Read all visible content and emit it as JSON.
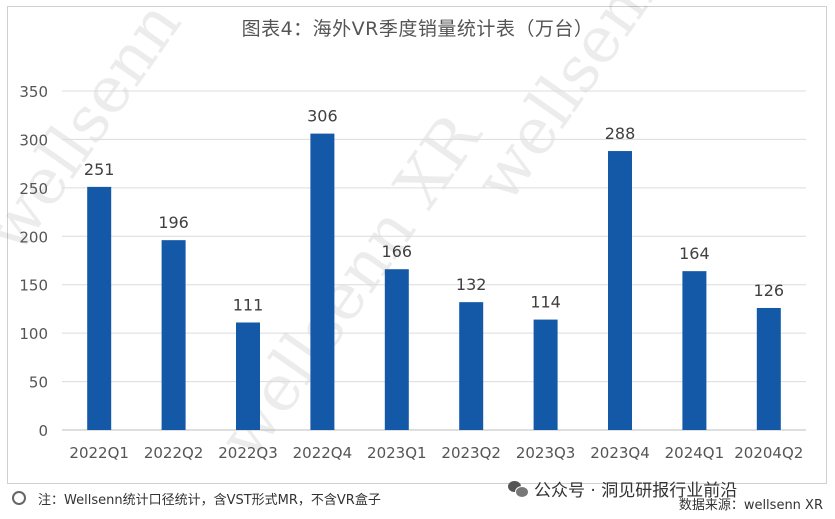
{
  "chart_data": {
    "type": "bar",
    "title": "图表4：海外VR季度销量统计表（万台）",
    "categories": [
      "2022Q1",
      "2022Q2",
      "2022Q3",
      "2022Q4",
      "2023Q1",
      "2023Q2",
      "2023Q3",
      "2023Q4",
      "2024Q1",
      "20204Q2"
    ],
    "values": [
      251,
      196,
      111,
      306,
      166,
      132,
      114,
      288,
      164,
      126
    ],
    "ylim": [
      0,
      350
    ],
    "yticks": [
      0,
      50,
      100,
      150,
      200,
      250,
      300,
      350
    ],
    "grid": true,
    "bar_color": "#1459a8"
  },
  "footnote": "注：Wellsenn统计口径统计，含VST形式MR，不含VR盒子",
  "source": "数据来源：wellsenn XR",
  "wechat_label": "公众号 · 洞见研报行业前沿",
  "watermark": "wellsenn XR"
}
